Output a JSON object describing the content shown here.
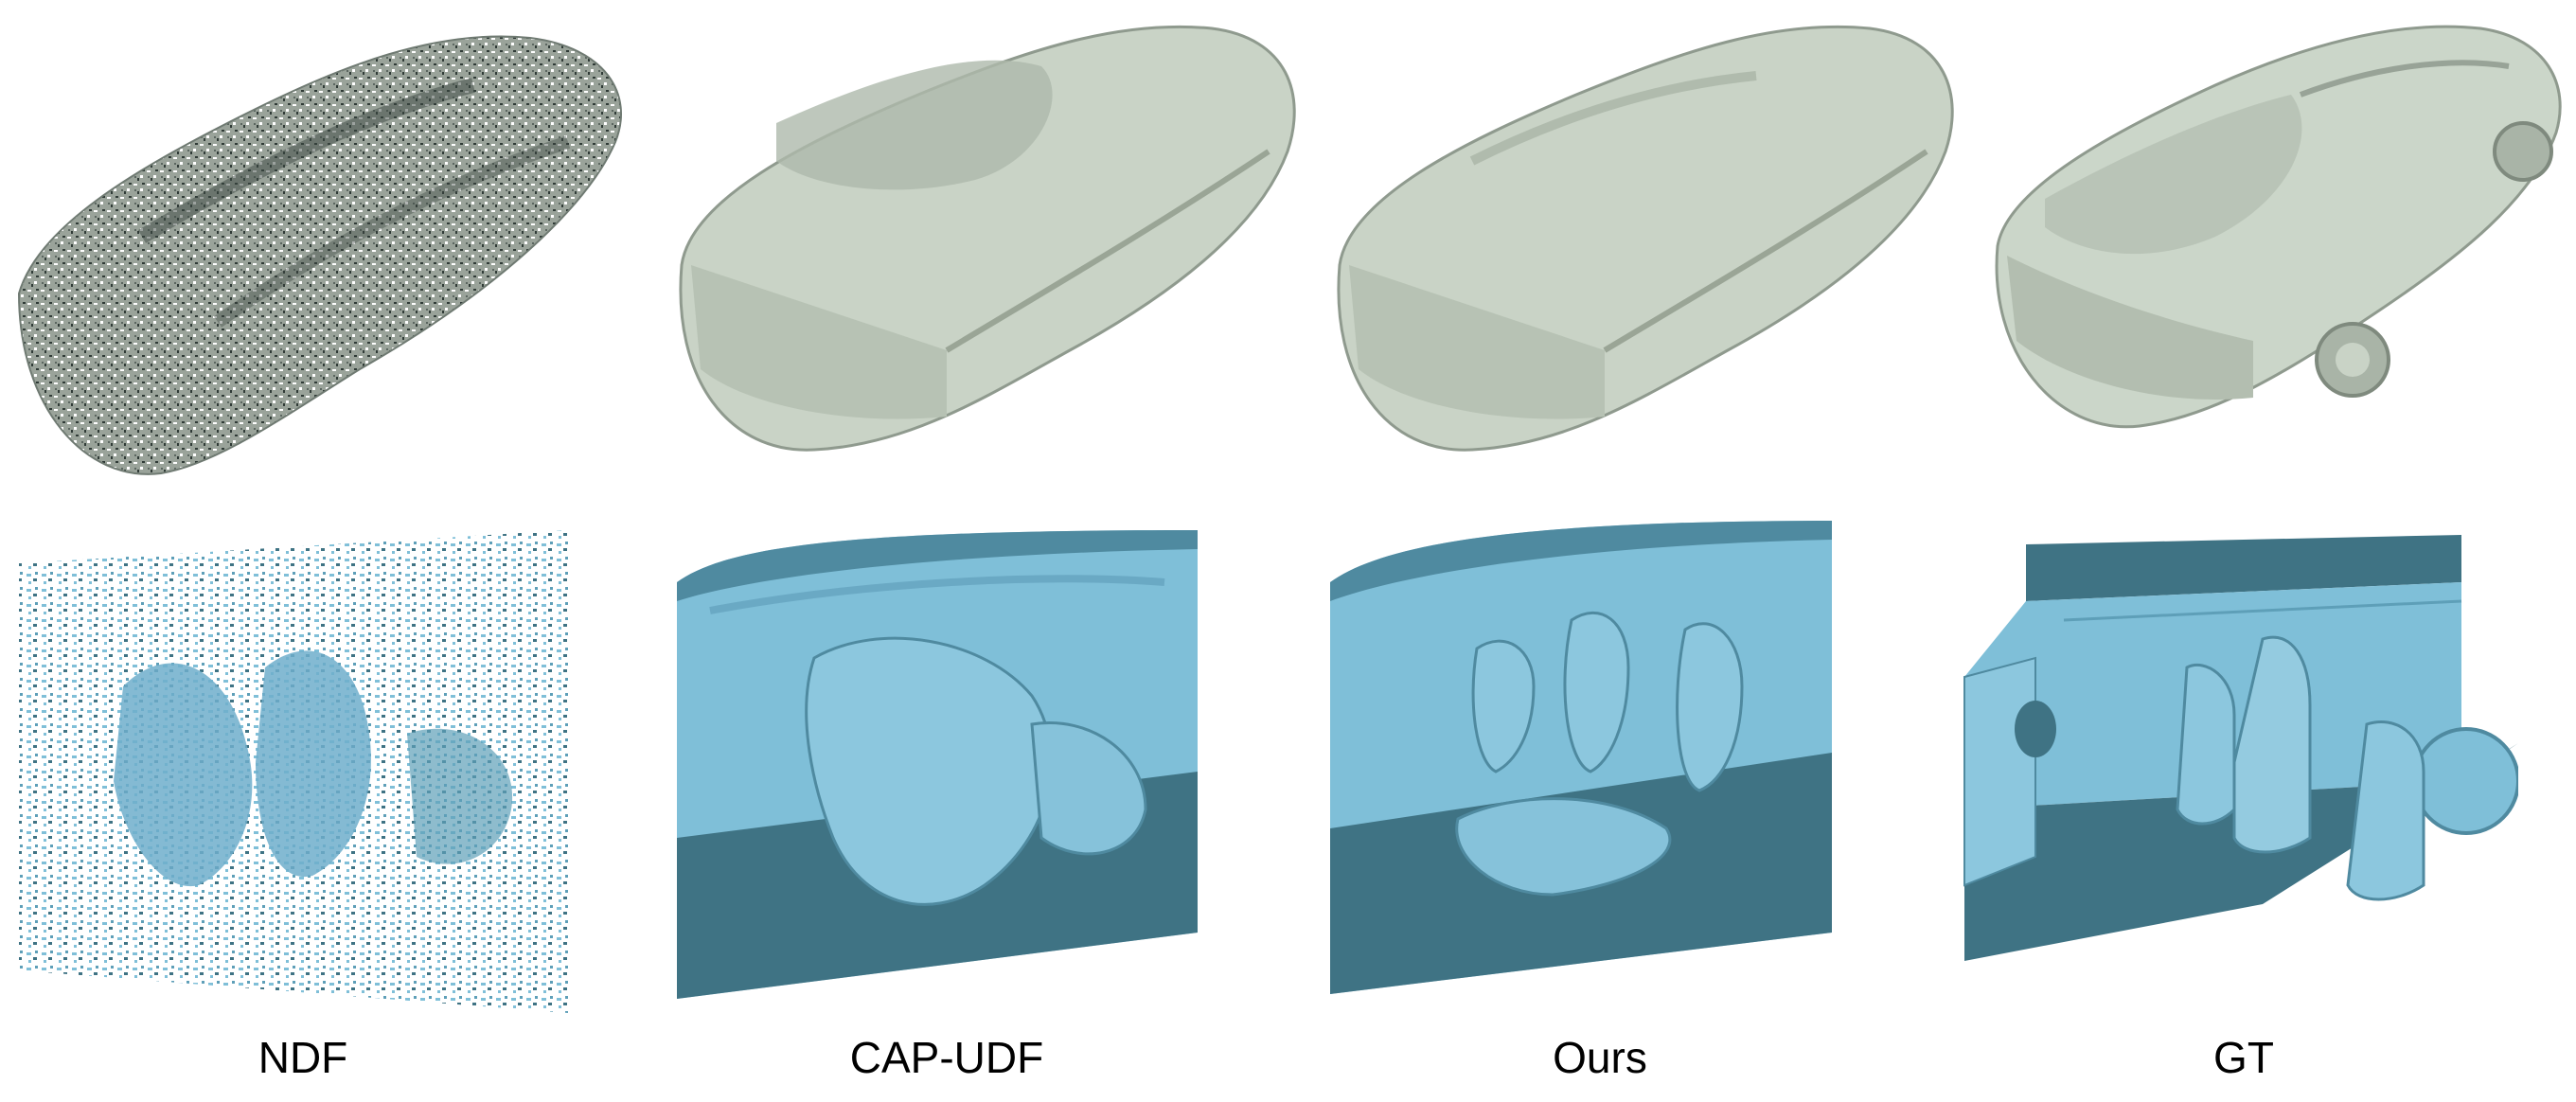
{
  "figure": {
    "columns": [
      {
        "label": "NDF"
      },
      {
        "label": "CAP-UDF"
      },
      {
        "label": "Ours"
      },
      {
        "label": "GT"
      }
    ],
    "colors": {
      "car_surface": "#c9d3c6",
      "car_shadow": "#8f9a8e",
      "interior_surface": "#7fbfd8",
      "interior_shadow": "#3f7384",
      "background": "#ffffff"
    }
  }
}
